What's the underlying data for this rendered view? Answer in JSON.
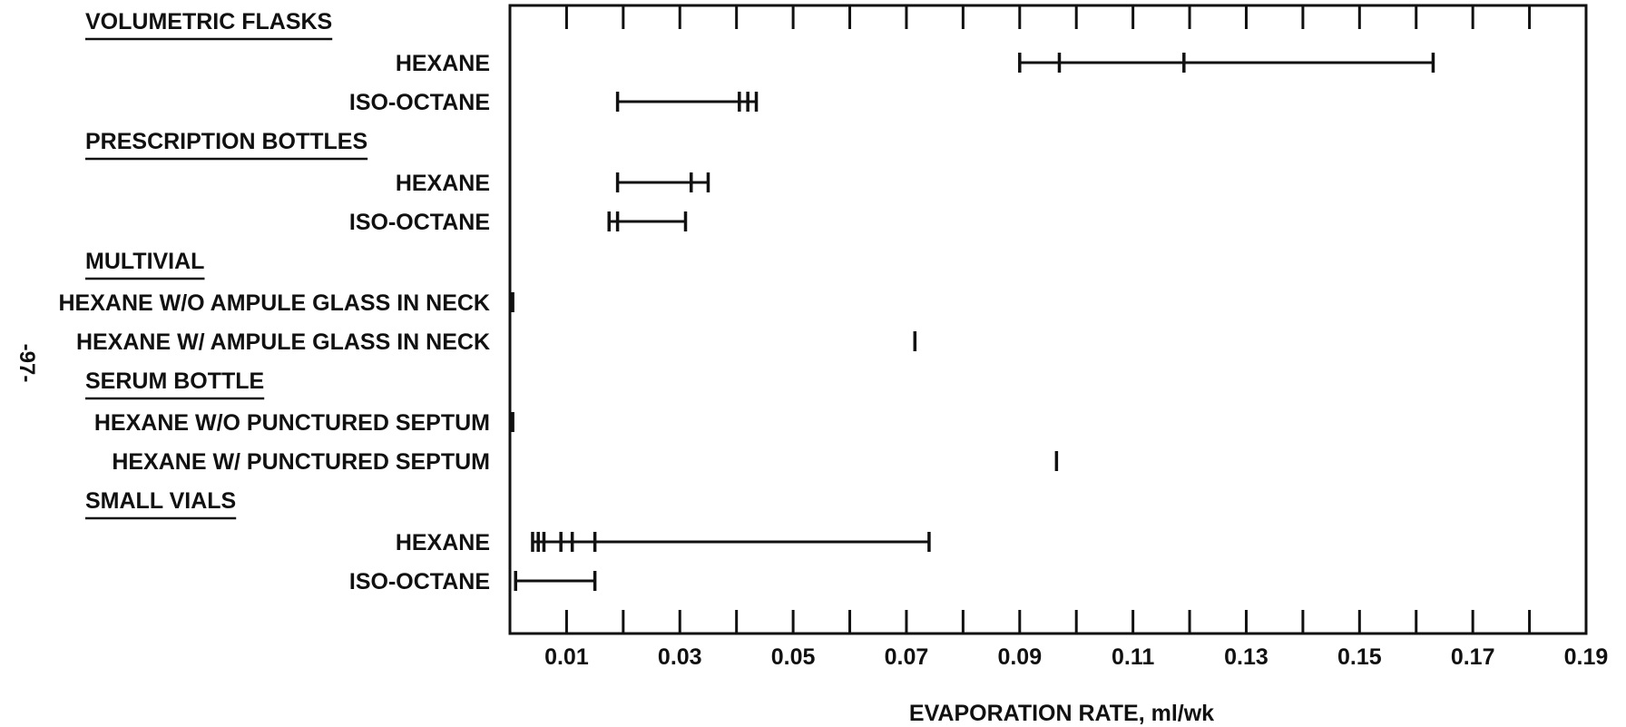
{
  "page_number": "-97-",
  "chart_data": {
    "type": "range",
    "title": "",
    "xlabel": "EVAPORATION RATE, ml/wk",
    "xlim": [
      0.0,
      0.19
    ],
    "x_ticks": [
      0.01,
      0.03,
      0.05,
      0.07,
      0.09,
      0.11,
      0.13,
      0.15,
      0.17,
      0.19
    ],
    "x_tick_labels": [
      "0.01",
      "0.03",
      "0.05",
      "0.07",
      "0.09",
      "0.11",
      "0.13",
      "0.15",
      "0.17",
      "0.19"
    ],
    "grid": false,
    "groups": [
      {
        "name": "VOLUMETRIC FLASKS",
        "rows": [
          {
            "label": "HEXANE",
            "values": [
              0.09,
              0.097,
              0.119,
              0.163
            ]
          },
          {
            "label": "ISO-OCTANE",
            "values": [
              0.019,
              0.0405,
              0.042,
              0.0435
            ]
          }
        ]
      },
      {
        "name": "PRESCRIPTION BOTTLES",
        "rows": [
          {
            "label": "HEXANE",
            "values": [
              0.019,
              0.032,
              0.035
            ]
          },
          {
            "label": "ISO-OCTANE",
            "values": [
              0.0175,
              0.019,
              0.031
            ]
          }
        ]
      },
      {
        "name": "MULTIVIAL",
        "rows": [
          {
            "label": "HEXANE W/O AMPULE GLASS IN NECK",
            "values": [
              0.0005
            ]
          },
          {
            "label": "HEXANE W/ AMPULE GLASS IN NECK",
            "values": [
              0.0715
            ]
          }
        ]
      },
      {
        "name": "SERUM BOTTLE",
        "rows": [
          {
            "label": "HEXANE W/O PUNCTURED SEPTUM",
            "values": [
              0.0005
            ]
          },
          {
            "label": "HEXANE W/ PUNCTURED SEPTUM",
            "values": [
              0.0965
            ]
          }
        ]
      },
      {
        "name": "SMALL VIALS",
        "rows": [
          {
            "label": "HEXANE",
            "values": [
              0.004,
              0.005,
              0.006,
              0.009,
              0.011,
              0.015,
              0.074
            ]
          },
          {
            "label": "ISO-OCTANE",
            "values": [
              0.001,
              0.015
            ]
          }
        ]
      }
    ]
  }
}
